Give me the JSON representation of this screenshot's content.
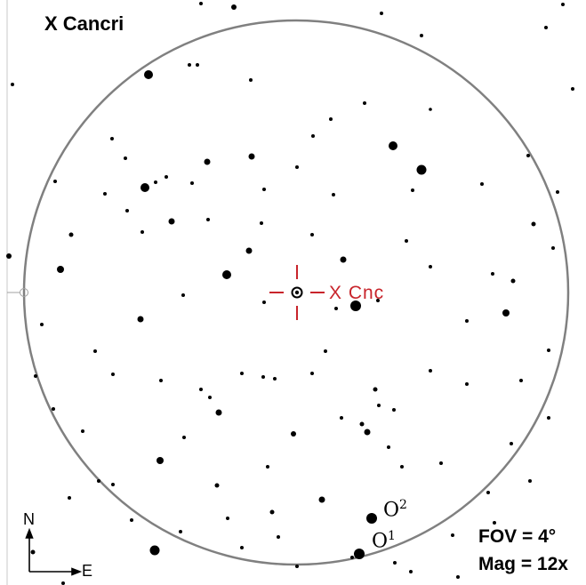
{
  "title": "X Cancri",
  "target_label": "X  Cnc",
  "fov": "FOV = 4°",
  "magnification": "Mag = 12x",
  "compass": {
    "north": "N",
    "east": "E"
  },
  "reference_stars": [
    {
      "letter": "O",
      "number": "2"
    },
    {
      "letter": "O",
      "number": "1"
    }
  ],
  "colors": {
    "target": "#c8242b",
    "circle": "#808080",
    "stars": "#000000"
  }
}
